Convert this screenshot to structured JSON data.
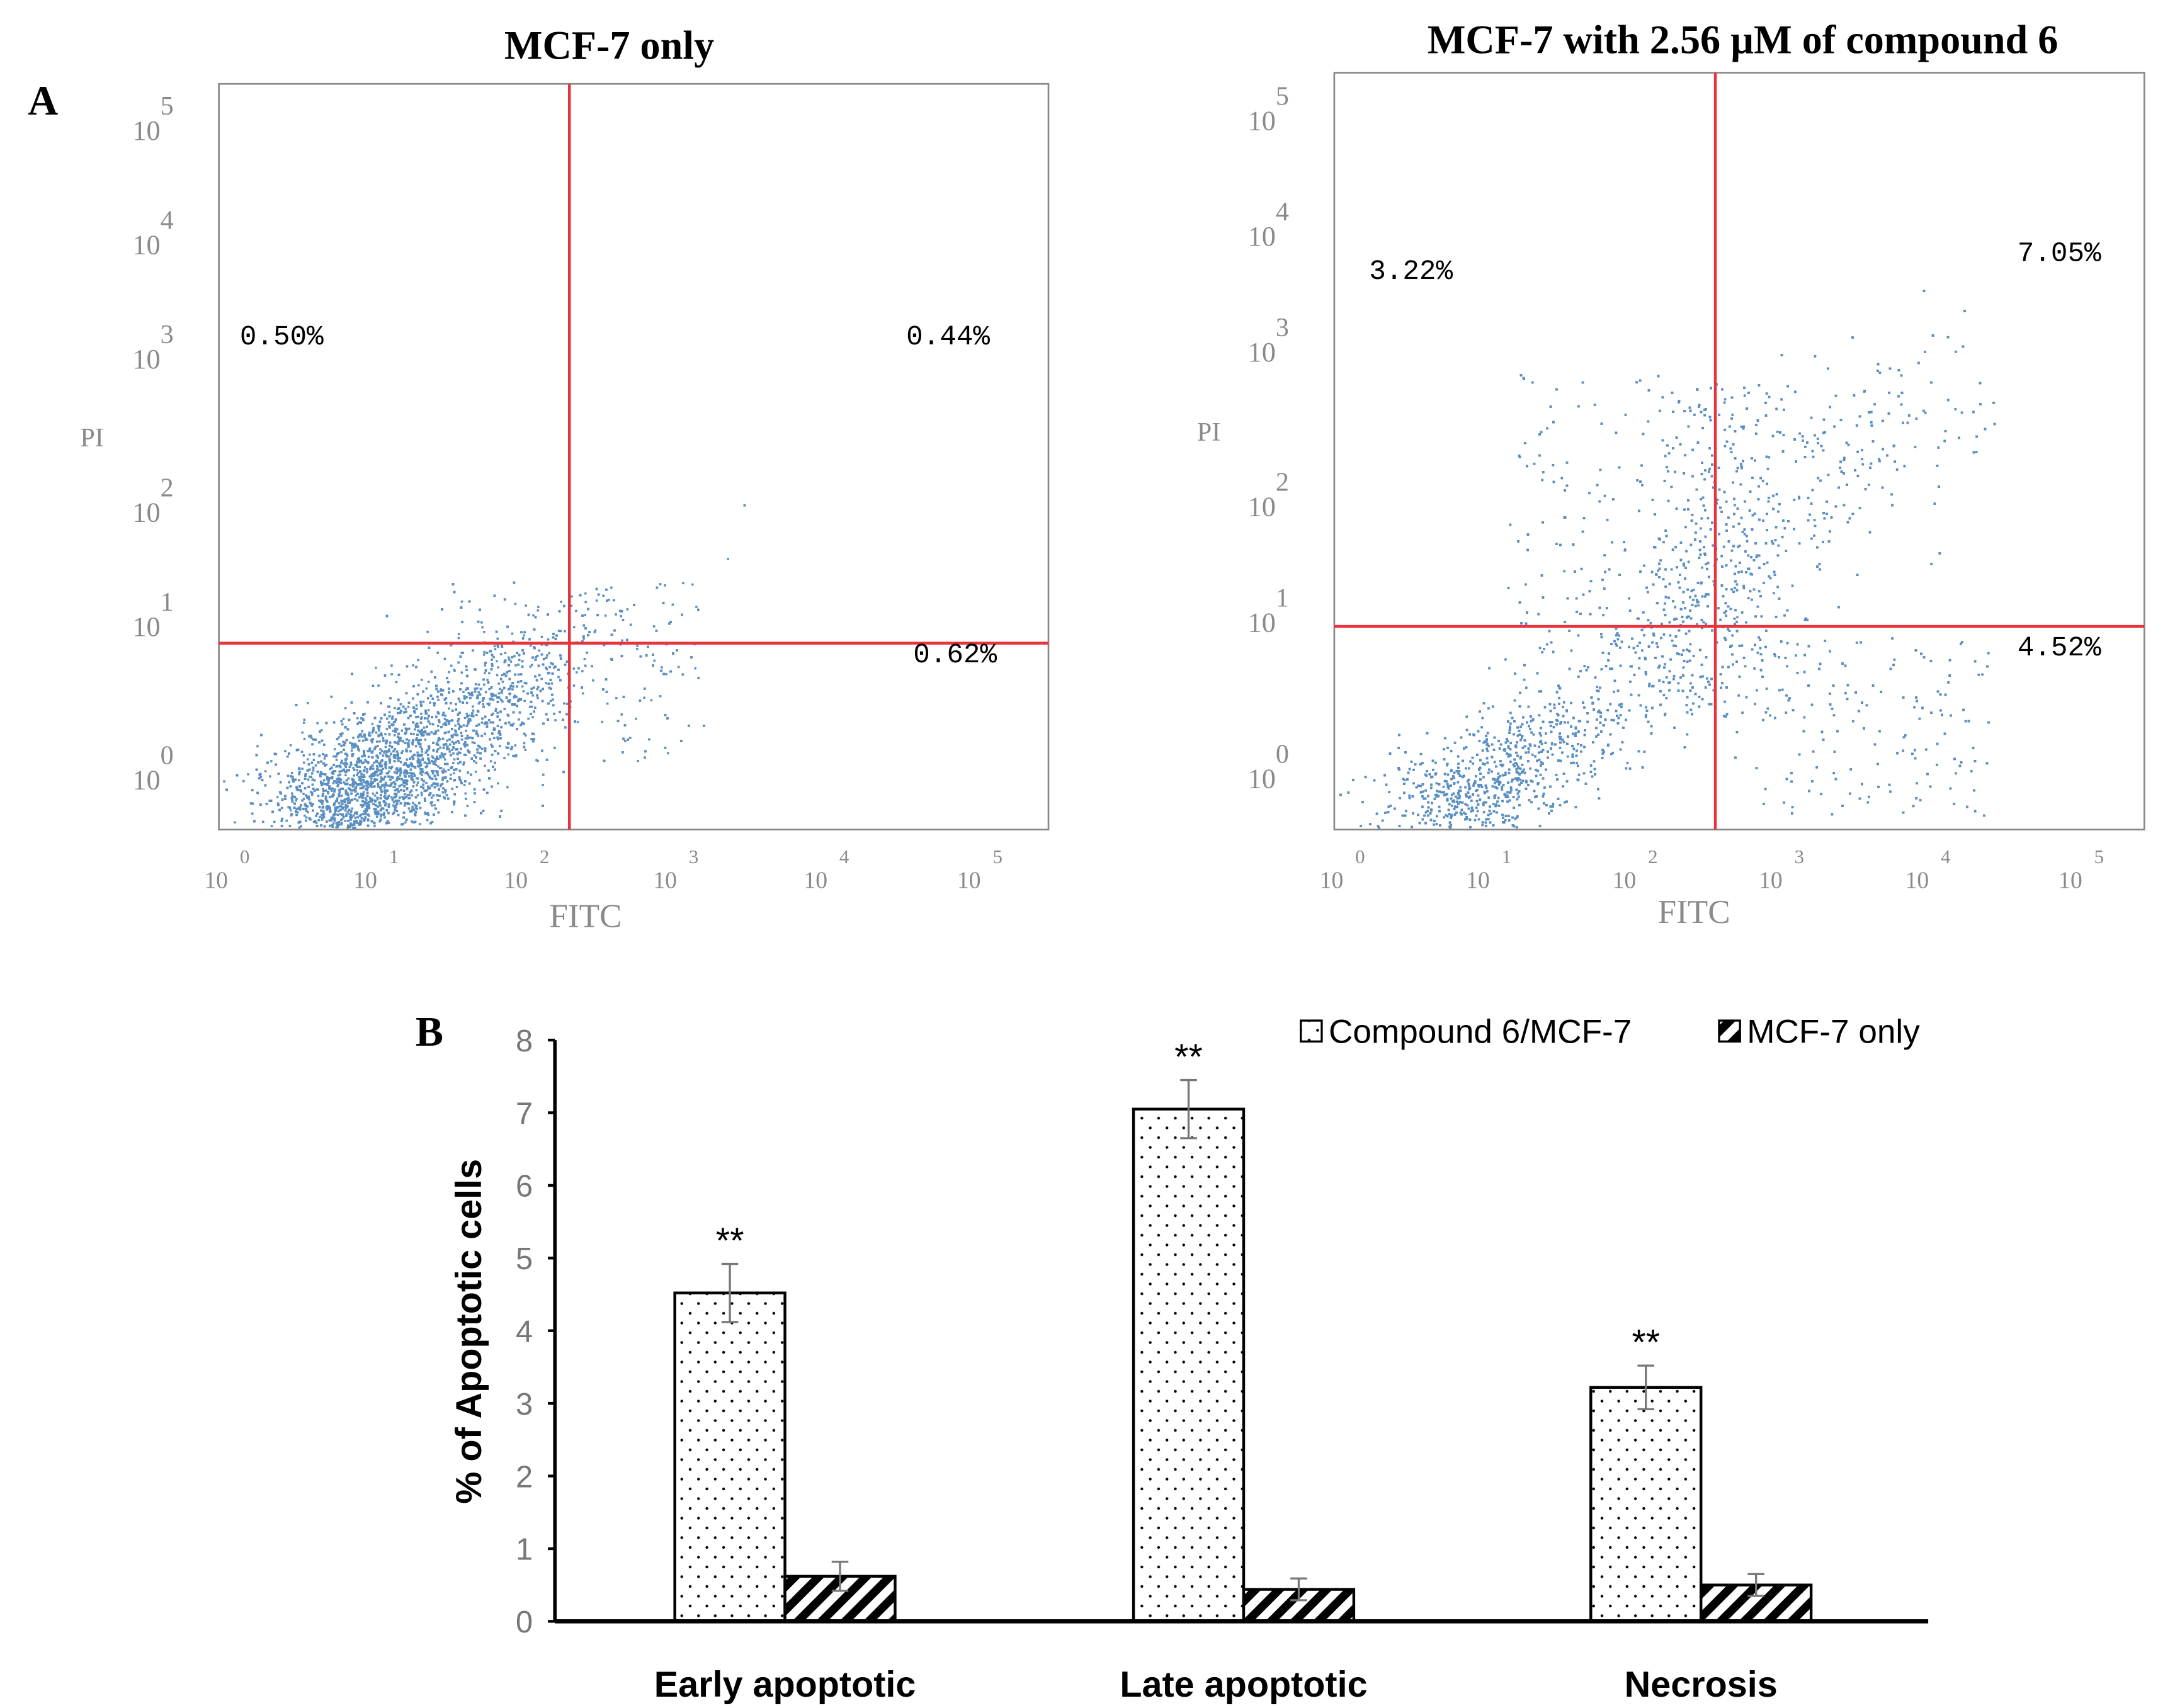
{
  "panel_a": {
    "label": "A",
    "plots": [
      {
        "title": "MCF-7 only",
        "xlabel": "FITC",
        "ylabel": "PI",
        "x_ticks": [
          "0",
          "1",
          "2",
          "3",
          "4",
          "5"
        ],
        "y_ticks": [
          "0",
          "1",
          "2",
          "3",
          "4",
          "5"
        ],
        "tick_base": "10",
        "quadrants": {
          "upper_left": "0.50%",
          "upper_right": "0.44%",
          "lower_right": "0.62%"
        },
        "gate_x_log": 2.3,
        "gate_y_log": 1.05
      },
      {
        "title": "MCF-7 with 2.56 µM of compound 6",
        "xlabel": "FITC",
        "ylabel": "PI",
        "x_ticks": [
          "0",
          "1",
          "2",
          "3",
          "4",
          "5"
        ],
        "y_ticks": [
          "0",
          "1",
          "2",
          "3",
          "4",
          "5"
        ],
        "tick_base": "10",
        "quadrants": {
          "upper_left": "3.22%",
          "upper_right": "7.05%",
          "lower_right": "4.52%"
        },
        "gate_x_log": 2.55,
        "gate_y_log": 1.15
      }
    ],
    "dot_color": "#5b8fc2",
    "gate_color": "#e8323c"
  },
  "chart_data": {
    "type": "bar",
    "label": "B",
    "title": "",
    "categories": [
      "Early apoptotic",
      "Late apoptotic",
      "Necrosis"
    ],
    "series": [
      {
        "name": "Compound 6/MCF-7",
        "values": [
          4.52,
          7.05,
          3.22
        ],
        "errors": [
          0.4,
          0.4,
          0.3
        ],
        "pattern": "dots",
        "significance": [
          "**",
          "**",
          "**"
        ]
      },
      {
        "name": "MCF-7 only",
        "values": [
          0.62,
          0.44,
          0.5
        ],
        "errors": [
          0.2,
          0.15,
          0.15
        ],
        "pattern": "hatch"
      }
    ],
    "xlabel": "",
    "ylabel": "% of Apoptotic cells",
    "ylim": [
      0,
      8
    ],
    "y_ticks": [
      "0",
      "1",
      "2",
      "3",
      "4",
      "5",
      "6",
      "7",
      "8"
    ],
    "legend_position": "top-right",
    "grid": false
  }
}
